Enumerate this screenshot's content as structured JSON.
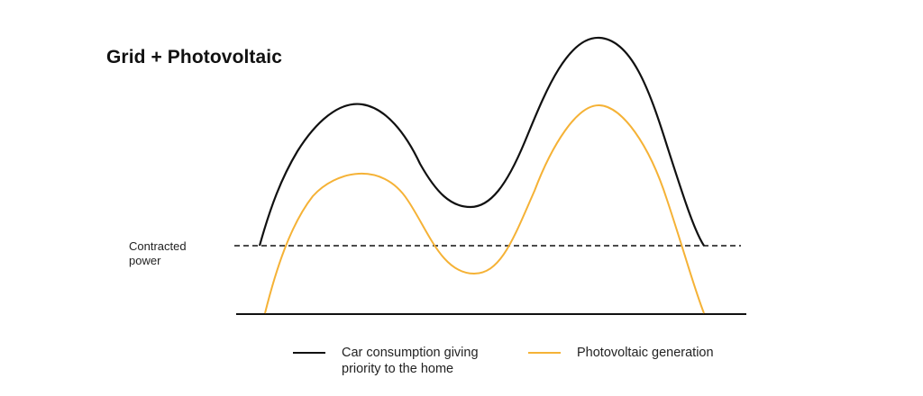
{
  "title": "Grid + Photovoltaic",
  "contracted_power": {
    "line1": "Contracted",
    "line2": "power"
  },
  "legend": {
    "grid": {
      "line1": "Car consumption giving",
      "line2": "priority to the home",
      "color": "#111111"
    },
    "pv": {
      "line1": "Photovoltaic generation",
      "color": "#f5b236"
    }
  },
  "colors": {
    "consumption": "#111111",
    "photovoltaic": "#f5b236",
    "threshold": "#111111",
    "baseline": "#111111"
  }
}
